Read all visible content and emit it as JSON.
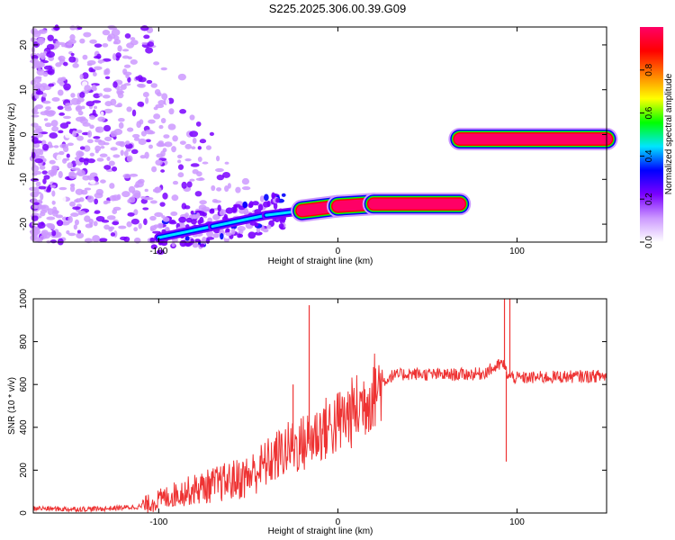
{
  "page": {
    "title": "S225.2025.306.00.39.G09"
  },
  "chart_data": [
    {
      "type": "heatmap",
      "title": "S225.2025.306.00.39.G09",
      "xlabel": "Height of straight line (km)",
      "ylabel": "Frequency (Hz)",
      "xlim": [
        -170,
        150
      ],
      "ylim": [
        -24,
        24
      ],
      "xticks": [
        -100,
        0,
        100
      ],
      "yticks": [
        -20,
        -10,
        0,
        10,
        20
      ],
      "colorbar": {
        "label": "Normalized spectral amplitude",
        "range": [
          0,
          1
        ],
        "ticks": [
          "0.0",
          "0.2",
          "0.4",
          "0.6",
          "0.8"
        ],
        "colors": [
          "#ffffff",
          "#cc99ff",
          "#7a00ff",
          "#0000ff",
          "#00e5ff",
          "#00ff00",
          "#ffff00",
          "#ff8000",
          "#ff0000",
          "#ff0066"
        ]
      },
      "ridge": [
        {
          "x": -100,
          "y": -23
        },
        {
          "x": -70,
          "y": -20.5
        },
        {
          "x": -40,
          "y": -18
        },
        {
          "x": -20,
          "y": -17
        },
        {
          "x": 0,
          "y": -16
        },
        {
          "x": 20,
          "y": -15.5
        },
        {
          "x": 68,
          "y": -15.5
        },
        {
          "x": 68,
          "y": -1
        },
        {
          "x": 150,
          "y": -1
        }
      ]
    },
    {
      "type": "line",
      "xlabel": "Height of straight line (km)",
      "ylabel": "SNR (10 * v/v)",
      "xlim": [
        -170,
        150
      ],
      "ylim": [
        0,
        1000
      ],
      "xticks": [
        -100,
        0,
        100
      ],
      "yticks": [
        0,
        200,
        400,
        600,
        800,
        1000
      ],
      "color": "#ee3333",
      "series": [
        {
          "x": [
            -170,
            -150,
            -130,
            -110,
            -100,
            -90,
            -80,
            -70,
            -60,
            -50,
            -45,
            -40,
            -35,
            -30,
            -25,
            -20,
            -15,
            -10,
            -5,
            0,
            5,
            10,
            15,
            20,
            25,
            30,
            40,
            60,
            80,
            88,
            92,
            95,
            100,
            120,
            150
          ],
          "values": [
            22,
            18,
            20,
            30,
            60,
            90,
            110,
            130,
            150,
            170,
            200,
            230,
            260,
            290,
            310,
            320,
            350,
            380,
            400,
            420,
            450,
            480,
            520,
            570,
            610,
            640,
            650,
            645,
            650,
            680,
            700,
            640,
            630,
            635,
            640
          ]
        }
      ],
      "spikes": [
        {
          "x": -25,
          "value": 600
        },
        {
          "x": -16,
          "value": 970
        },
        {
          "x": 93,
          "value": 1000
        },
        {
          "x": 96,
          "value": 1000
        },
        {
          "x": 94,
          "value": 240
        }
      ]
    }
  ]
}
